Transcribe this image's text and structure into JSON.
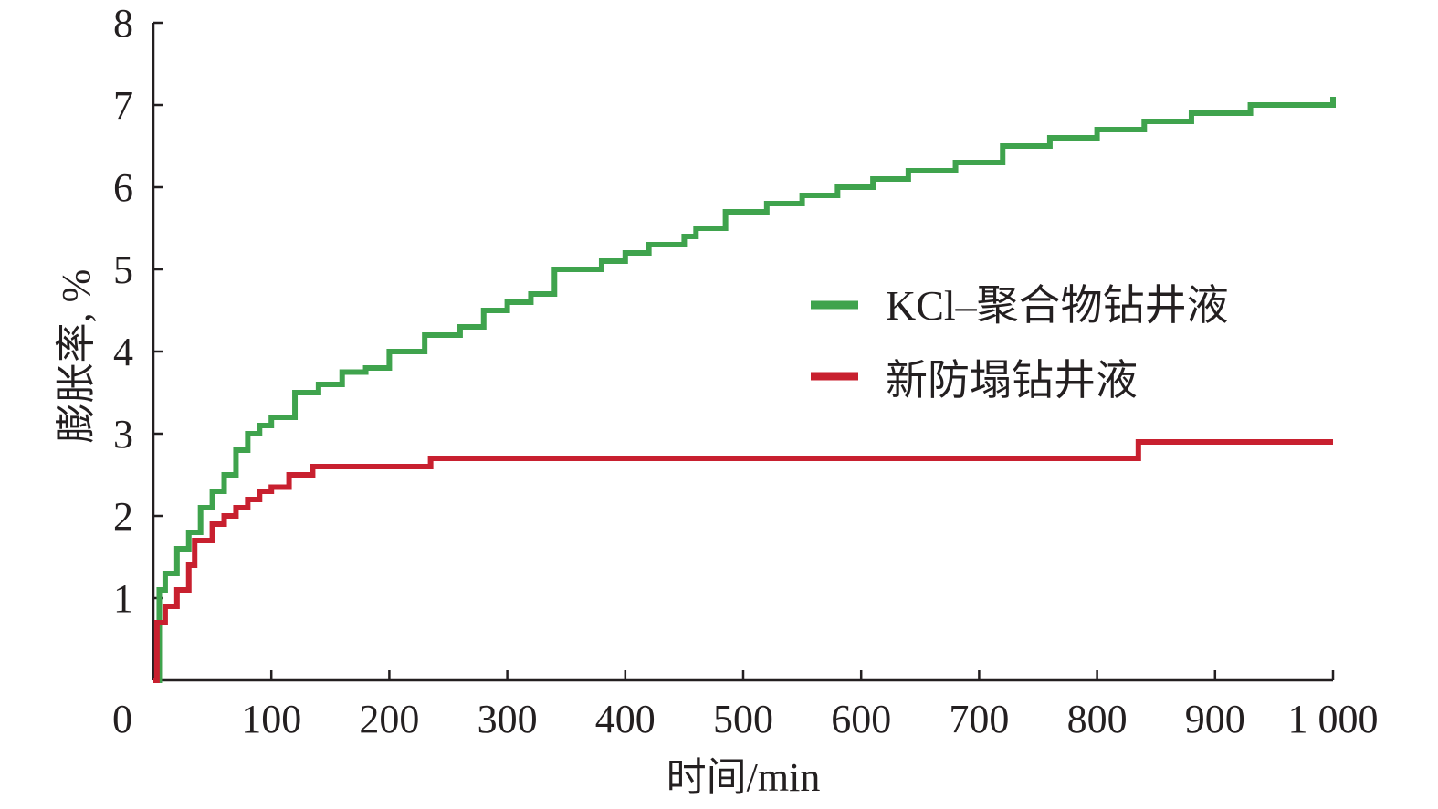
{
  "chart_data": {
    "type": "line",
    "title": "",
    "xlabel": "时间/min",
    "ylabel": "膨胀率, %",
    "xlim": [
      0,
      1000
    ],
    "ylim": [
      0,
      8
    ],
    "xticks": [
      0,
      100,
      200,
      300,
      400,
      500,
      600,
      700,
      800,
      900,
      1000
    ],
    "xtick_labels": [
      "0",
      "100",
      "200",
      "300",
      "400",
      "500",
      "600",
      "700",
      "800",
      "900",
      "1 000"
    ],
    "yticks": [
      1,
      2,
      3,
      4,
      5,
      6,
      7,
      8
    ],
    "ytick_labels": [
      "1",
      "2",
      "3",
      "4",
      "5",
      "6",
      "7",
      "8"
    ],
    "grid": false,
    "legend_position": "center-right",
    "series": [
      {
        "name": "KCl–聚合物钻井液",
        "color": "#3fa34d",
        "x": [
          0,
          5,
          10,
          20,
          30,
          40,
          50,
          60,
          70,
          80,
          90,
          100,
          120,
          140,
          160,
          180,
          200,
          230,
          260,
          280,
          300,
          320,
          340,
          380,
          400,
          420,
          450,
          460,
          485,
          520,
          550,
          580,
          610,
          640,
          680,
          720,
          760,
          800,
          840,
          880,
          930,
          1000
        ],
        "y": [
          0,
          1.1,
          1.3,
          1.6,
          1.8,
          2.1,
          2.3,
          2.5,
          2.8,
          3.0,
          3.1,
          3.2,
          3.5,
          3.6,
          3.75,
          3.8,
          4.0,
          4.2,
          4.3,
          4.5,
          4.6,
          4.7,
          5.0,
          5.1,
          5.2,
          5.3,
          5.4,
          5.5,
          5.7,
          5.8,
          5.9,
          6.0,
          6.1,
          6.2,
          6.3,
          6.5,
          6.6,
          6.7,
          6.8,
          6.9,
          7.0,
          7.1
        ]
      },
      {
        "name": "新防塌钻井液",
        "color": "#c8202f",
        "x": [
          0,
          3,
          10,
          20,
          30,
          35,
          50,
          60,
          70,
          80,
          90,
          100,
          115,
          135,
          235,
          835,
          1000
        ],
        "y": [
          0,
          0.7,
          0.9,
          1.1,
          1.4,
          1.7,
          1.9,
          2.0,
          2.1,
          2.2,
          2.3,
          2.35,
          2.5,
          2.6,
          2.7,
          2.9,
          2.9
        ]
      }
    ]
  }
}
